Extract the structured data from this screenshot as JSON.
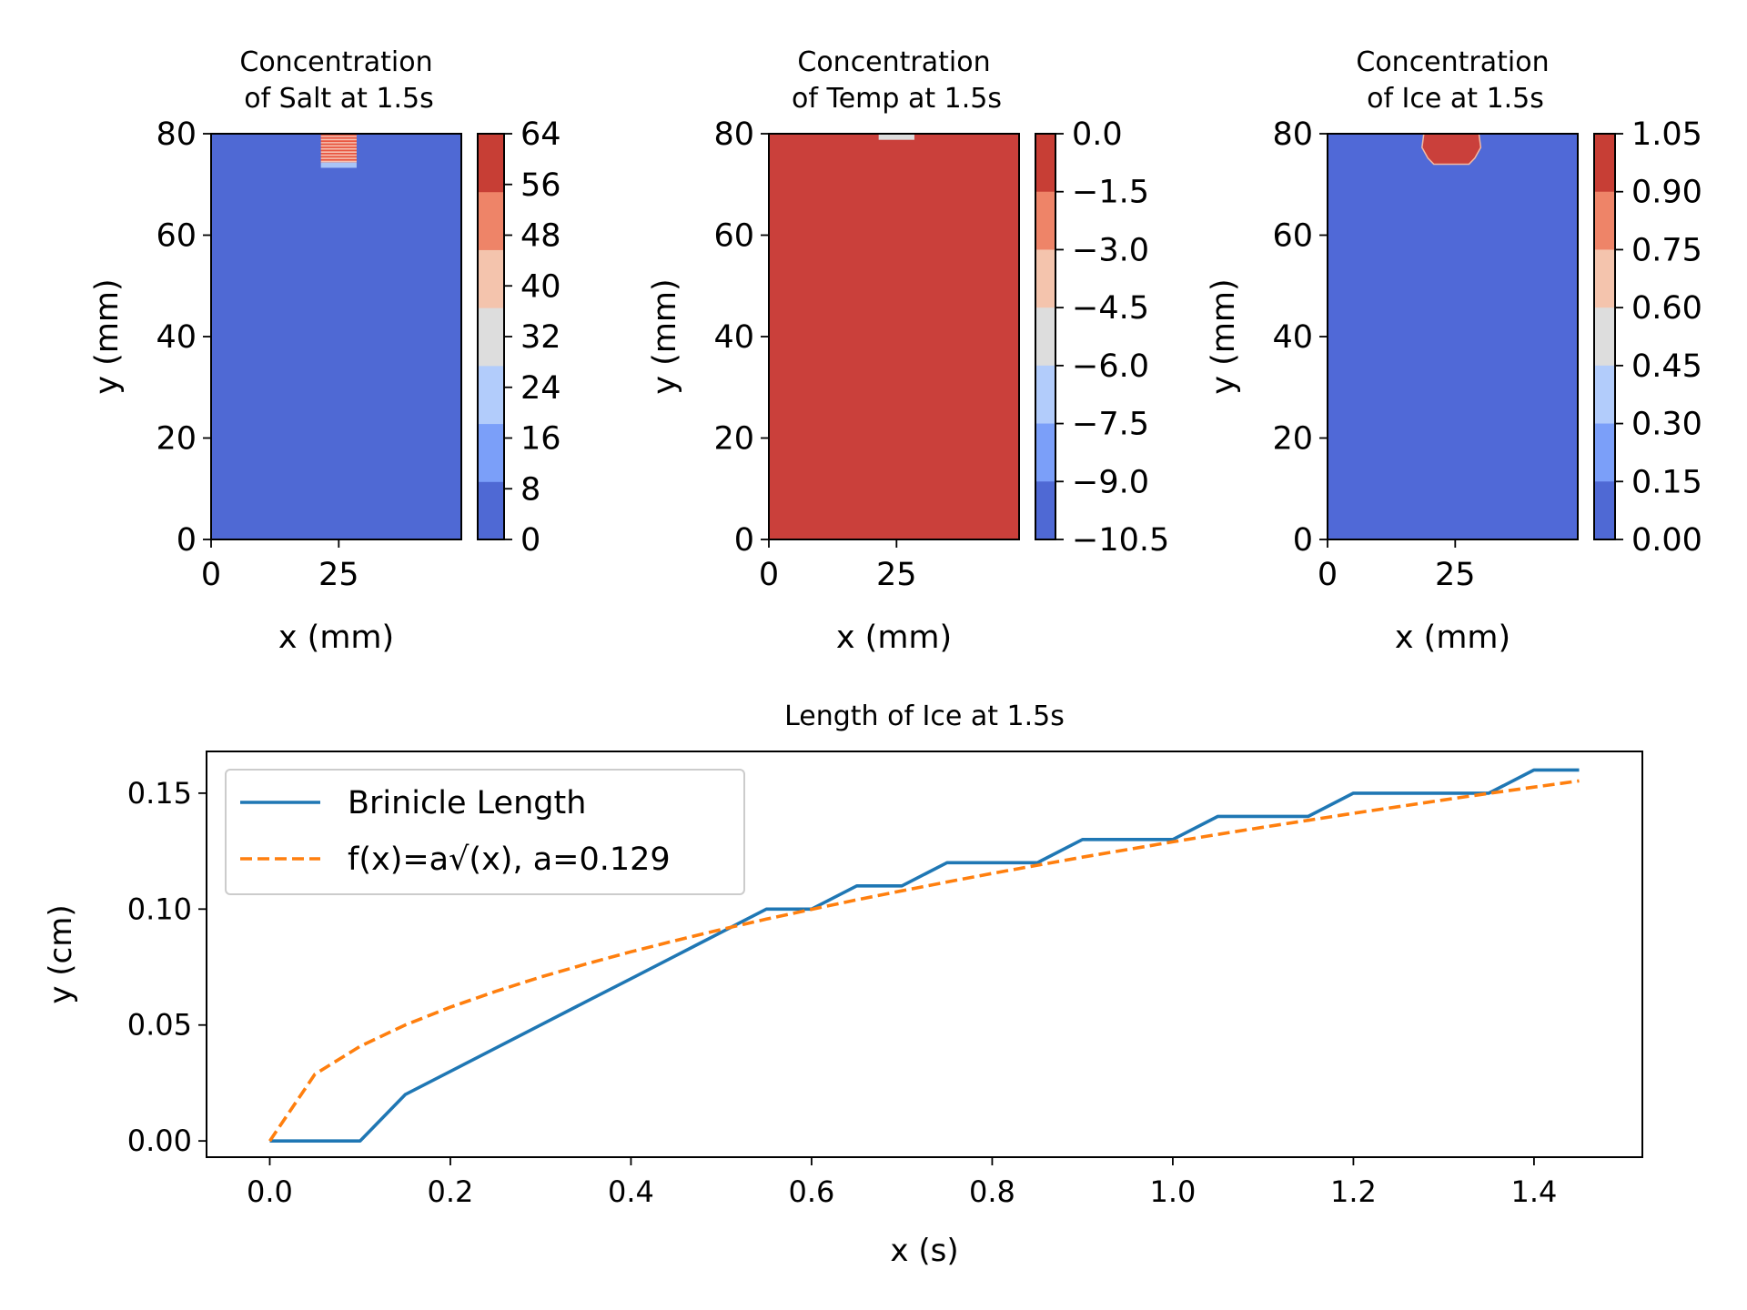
{
  "chart_data": [
    {
      "type": "heatmap",
      "title": "Concentration\nof Salt at 1.5s",
      "xlabel": "x (mm)",
      "ylabel": "y (mm)",
      "xlim": [
        0,
        49
      ],
      "ylim": [
        0,
        80
      ],
      "xticks": [
        "0",
        "25"
      ],
      "yticks": [
        "0",
        "20",
        "40",
        "60",
        "80"
      ],
      "background_color": "#4f69d4",
      "feature": {
        "shape": "striped-block",
        "x": [
          21.5,
          28.5
        ],
        "y": [
          74,
          80
        ]
      },
      "colorbar": {
        "ticks": [
          "0",
          "8",
          "16",
          "24",
          "32",
          "40",
          "48",
          "56",
          "64"
        ],
        "colors": [
          "#4f69d4",
          "#7b9ff9",
          "#b2ccfb",
          "#dddddd",
          "#f4c4ad",
          "#ee8468",
          "#c73e35"
        ]
      }
    },
    {
      "type": "heatmap",
      "title": "Concentration\nof Temp at 1.5s",
      "xlabel": "x (mm)",
      "ylabel": "y (mm)",
      "xlim": [
        0,
        49
      ],
      "ylim": [
        0,
        80
      ],
      "xticks": [
        "0",
        "25"
      ],
      "yticks": [
        "0",
        "20",
        "40",
        "60",
        "80"
      ],
      "background_color": "#ca403b",
      "feature": {
        "shape": "thin-strip",
        "x": [
          21.5,
          28.5
        ],
        "y": [
          78.8,
          80
        ]
      },
      "colorbar": {
        "ticks": [
          "0.0",
          "−1.5",
          "−3.0",
          "−4.5",
          "−6.0",
          "−7.5",
          "−9.0",
          "−10.5"
        ],
        "colors": [
          "#c73e35",
          "#ee8468",
          "#f4c4ad",
          "#dddddd",
          "#b2ccfb",
          "#7b9ff9",
          "#4f69d4"
        ]
      }
    },
    {
      "type": "heatmap",
      "title": "Concentration\nof Ice at 1.5s",
      "xlabel": "x (mm)",
      "ylabel": "y (mm)",
      "xlim": [
        0,
        49
      ],
      "ylim": [
        0,
        80
      ],
      "xticks": [
        "0",
        "25"
      ],
      "yticks": [
        "0",
        "20",
        "40",
        "60",
        "80"
      ],
      "background_color": "#5069d7",
      "feature": {
        "shape": "blob",
        "x": [
          18.5,
          30
        ],
        "y": [
          74,
          80
        ]
      },
      "colorbar": {
        "ticks": [
          "1.05",
          "0.90",
          "0.75",
          "0.60",
          "0.45",
          "0.30",
          "0.15",
          "0.00"
        ],
        "colors": [
          "#c73e35",
          "#ee8468",
          "#f4c4ad",
          "#dddddd",
          "#b2ccfb",
          "#7b9ff9",
          "#4f69d4"
        ]
      }
    },
    {
      "type": "line",
      "title": "Length of Ice at 1.5s",
      "xlabel": "x (s)",
      "ylabel": "y (cm)",
      "xlim": [
        -0.07,
        1.52
      ],
      "ylim": [
        -0.007,
        0.168
      ],
      "xticks": [
        "0.0",
        "0.2",
        "0.4",
        "0.6",
        "0.8",
        "1.0",
        "1.2",
        "1.4"
      ],
      "xtick_values": [
        0,
        0.2,
        0.4,
        0.6,
        0.8,
        1.0,
        1.2,
        1.4
      ],
      "yticks": [
        "0.00",
        "0.05",
        "0.10",
        "0.15"
      ],
      "ytick_values": [
        0,
        0.05,
        0.1,
        0.15
      ],
      "legend_position": "top-left",
      "series": [
        {
          "name": "Brinicle Length",
          "color": "#1f77b4",
          "dash": "solid",
          "x": [
            0,
            0.05,
            0.1,
            0.15,
            0.2,
            0.25,
            0.3,
            0.35,
            0.4,
            0.45,
            0.5,
            0.55,
            0.6,
            0.65,
            0.7,
            0.75,
            0.8,
            0.85,
            0.9,
            0.95,
            1.0,
            1.05,
            1.1,
            1.15,
            1.2,
            1.25,
            1.3,
            1.35,
            1.4,
            1.45
          ],
          "y": [
            0,
            0,
            0,
            0.02,
            0.03,
            0.04,
            0.05,
            0.06,
            0.07,
            0.08,
            0.09,
            0.1,
            0.1,
            0.11,
            0.11,
            0.12,
            0.12,
            0.12,
            0.13,
            0.13,
            0.13,
            0.14,
            0.14,
            0.14,
            0.15,
            0.15,
            0.15,
            0.15,
            0.16,
            0.16
          ]
        },
        {
          "name": "f(x)=a√(x), a=0.129",
          "color": "#ff7f0e",
          "dash": "dashed",
          "x": [
            0,
            0.05,
            0.1,
            0.15,
            0.2,
            0.25,
            0.3,
            0.35,
            0.4,
            0.45,
            0.5,
            0.55,
            0.6,
            0.65,
            0.7,
            0.75,
            0.8,
            0.85,
            0.9,
            0.95,
            1.0,
            1.05,
            1.1,
            1.15,
            1.2,
            1.25,
            1.3,
            1.35,
            1.4,
            1.45
          ],
          "y": [
            0,
            0.0288,
            0.0408,
            0.05,
            0.0577,
            0.0645,
            0.0707,
            0.0763,
            0.0816,
            0.0865,
            0.0912,
            0.0957,
            0.0999,
            0.104,
            0.1079,
            0.1117,
            0.1154,
            0.1189,
            0.1224,
            0.1257,
            0.129,
            0.1322,
            0.1353,
            0.1383,
            0.1413,
            0.1442,
            0.1471,
            0.1499,
            0.1526,
            0.1553
          ]
        }
      ]
    }
  ]
}
